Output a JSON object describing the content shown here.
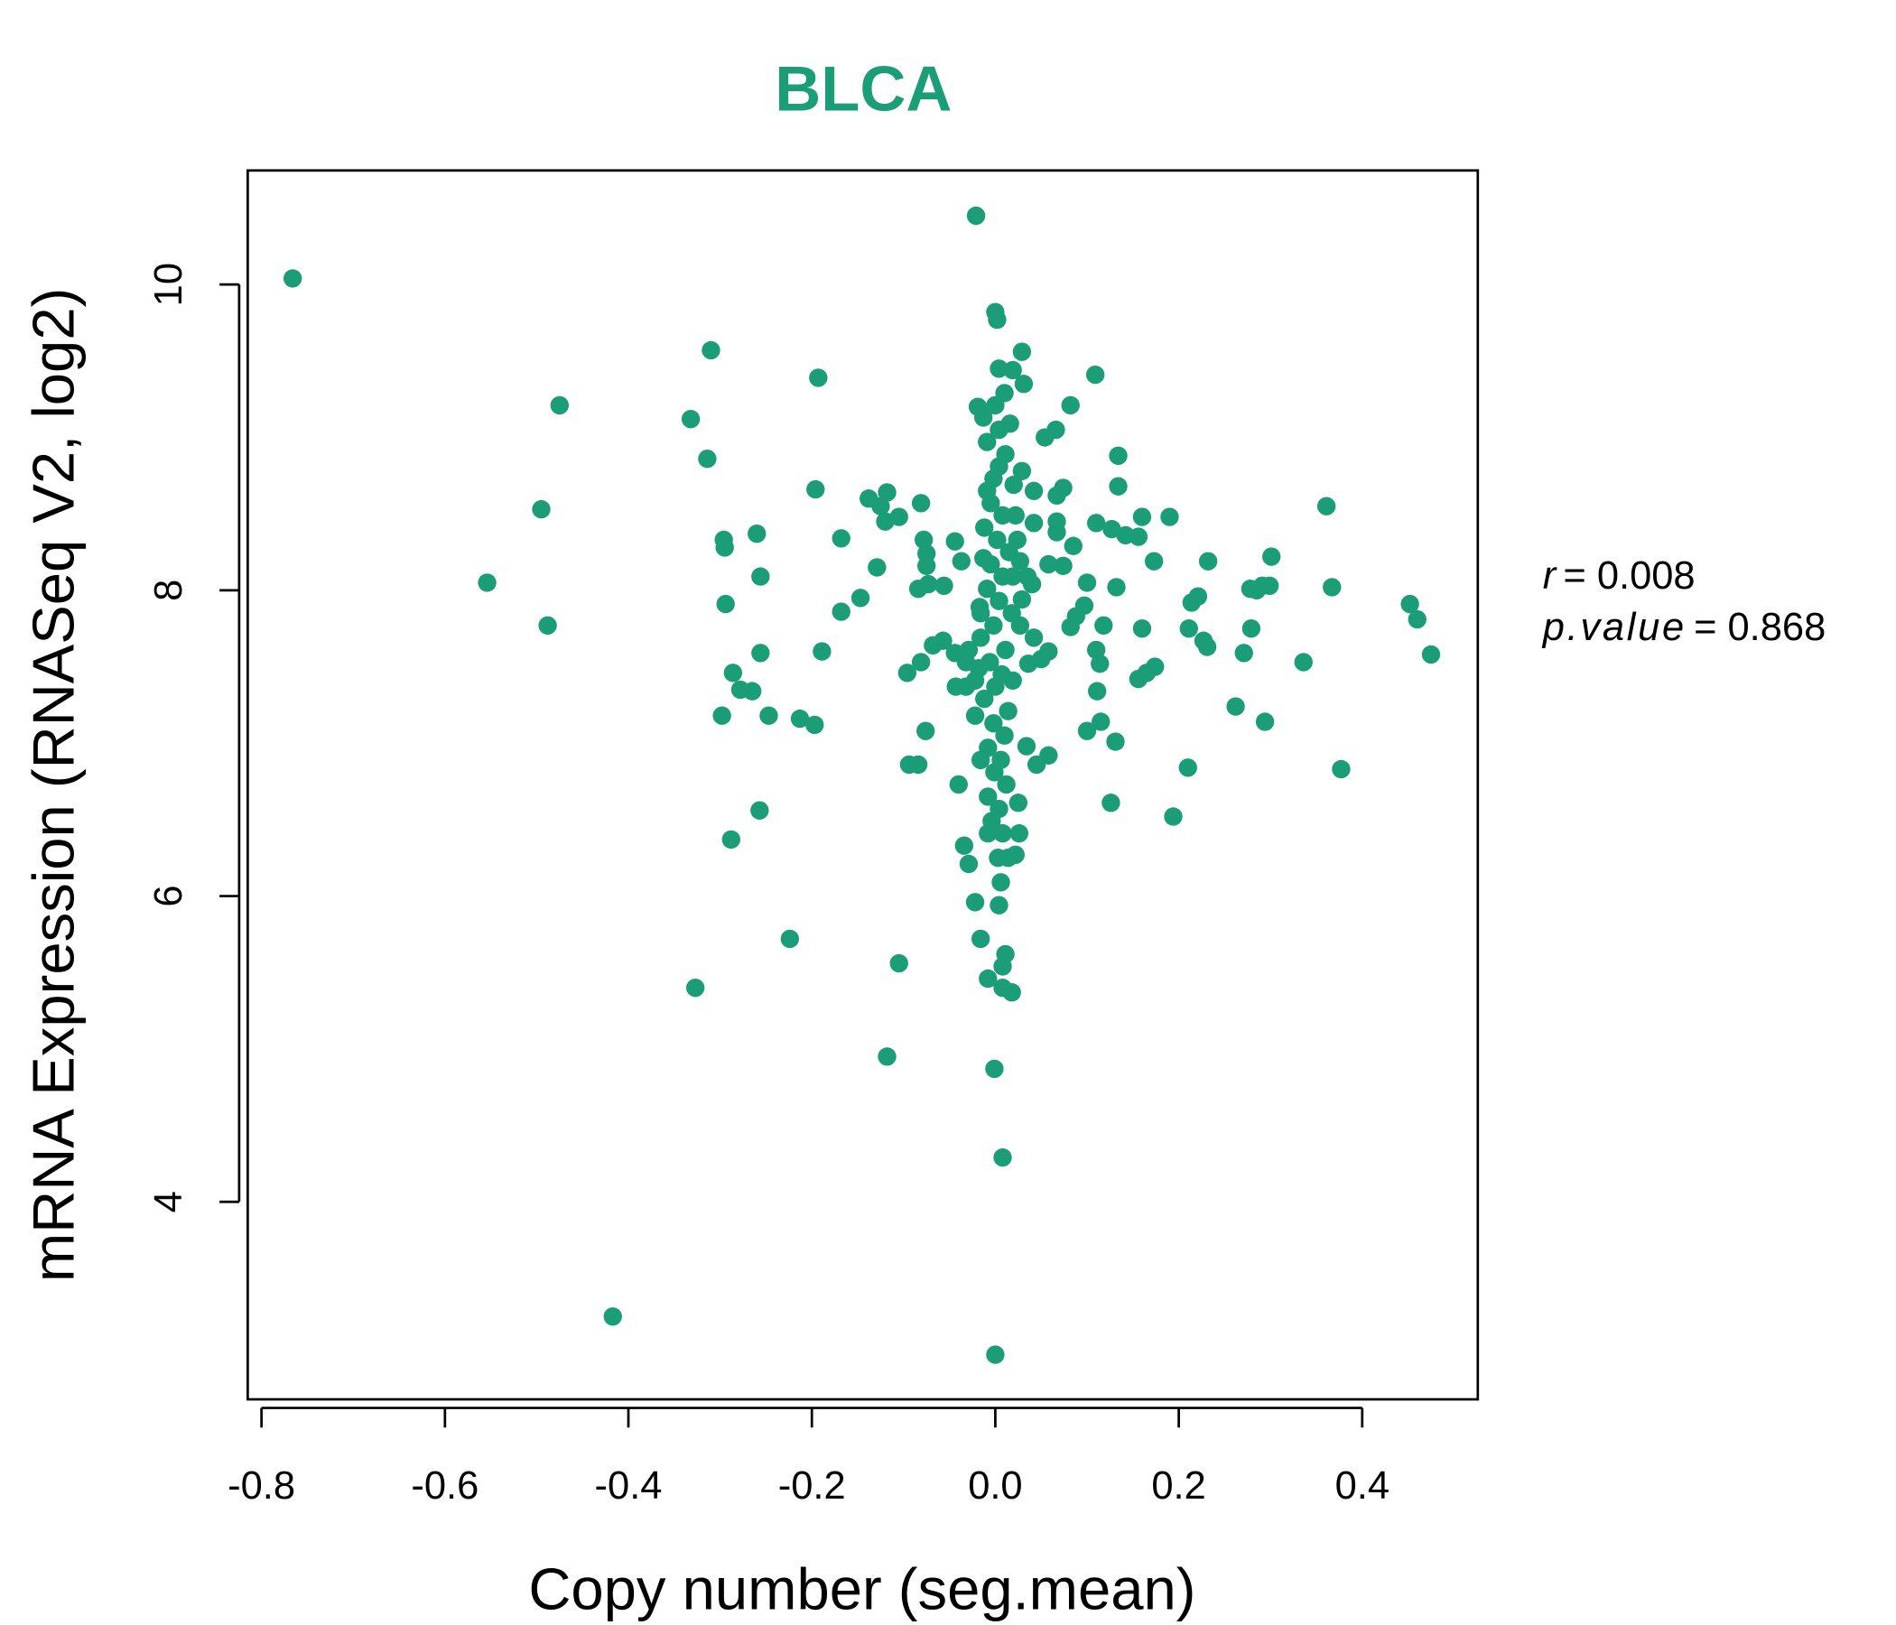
{
  "chart_data": {
    "type": "scatter",
    "title": "BLCA",
    "xlabel": "Copy number (seg.mean)",
    "ylabel": "mRNA Expression (RNASeq V2, log2)",
    "xlim": [
      -0.815,
      0.526
    ],
    "ylim": [
      2.708,
      10.746
    ],
    "xticks": [
      -0.8,
      -0.6,
      -0.4,
      -0.2,
      0.0,
      0.2,
      0.4
    ],
    "xtick_labels": [
      "-0.8",
      "-0.6",
      "-0.4",
      "-0.2",
      "0.0",
      "0.2",
      "0.4"
    ],
    "yticks": [
      4,
      6,
      8,
      10
    ],
    "ytick_labels": [
      "4",
      "6",
      "8",
      "10"
    ],
    "grid": false,
    "color": "#1b9e77",
    "stats": {
      "r_label": "r",
      "r_value": "= 0.008",
      "p_label": "p.value",
      "p_value": "= 0.868"
    },
    "points": [
      [
        -0.766,
        10.04
      ],
      [
        -0.021,
        10.45
      ],
      [
        -0.417,
        3.25
      ],
      [
        0.0,
        3.0
      ],
      [
        -0.554,
        8.05
      ],
      [
        -0.495,
        8.53
      ],
      [
        -0.488,
        7.77
      ],
      [
        -0.475,
        9.21
      ],
      [
        -0.332,
        9.12
      ],
      [
        -0.31,
        9.57
      ],
      [
        -0.314,
        8.86
      ],
      [
        -0.327,
        5.4
      ],
      [
        -0.296,
        8.33
      ],
      [
        -0.295,
        8.28
      ],
      [
        -0.294,
        7.91
      ],
      [
        -0.298,
        7.18
      ],
      [
        -0.286,
        7.46
      ],
      [
        -0.288,
        6.37
      ],
      [
        -0.278,
        7.35
      ],
      [
        -0.265,
        7.34
      ],
      [
        -0.26,
        8.37
      ],
      [
        -0.256,
        8.09
      ],
      [
        -0.256,
        7.59
      ],
      [
        -0.257,
        6.56
      ],
      [
        -0.247,
        7.18
      ],
      [
        -0.224,
        5.72
      ],
      [
        -0.213,
        7.16
      ],
      [
        -0.197,
        7.12
      ],
      [
        -0.193,
        9.39
      ],
      [
        -0.196,
        8.66
      ],
      [
        -0.189,
        7.6
      ],
      [
        -0.168,
        8.34
      ],
      [
        -0.168,
        7.86
      ],
      [
        -0.147,
        7.95
      ],
      [
        -0.138,
        8.6
      ],
      [
        -0.129,
        8.15
      ],
      [
        -0.125,
        8.55
      ],
      [
        -0.118,
        8.64
      ],
      [
        -0.12,
        8.45
      ],
      [
        -0.105,
        8.48
      ],
      [
        -0.118,
        4.95
      ],
      [
        -0.105,
        5.56
      ],
      [
        -0.096,
        7.46
      ],
      [
        -0.094,
        6.86
      ],
      [
        -0.081,
        8.57
      ],
      [
        -0.081,
        7.53
      ],
      [
        -0.084,
        6.86
      ],
      [
        -0.078,
        8.33
      ],
      [
        -0.084,
        8.01
      ],
      [
        -0.075,
        8.24
      ],
      [
        -0.075,
        8.16
      ],
      [
        -0.076,
        7.08
      ],
      [
        -0.073,
        8.04
      ],
      [
        -0.068,
        7.64
      ],
      [
        -0.057,
        7.67
      ],
      [
        -0.056,
        8.03
      ],
      [
        -0.044,
        8.32
      ],
      [
        -0.044,
        7.59
      ],
      [
        -0.043,
        7.37
      ],
      [
        -0.04,
        6.73
      ],
      [
        -0.037,
        8.19
      ],
      [
        -0.034,
        6.33
      ],
      [
        -0.032,
        7.37
      ],
      [
        -0.029,
        6.21
      ],
      [
        -0.022,
        5.96
      ],
      [
        -0.022,
        7.18
      ],
      [
        -0.016,
        5.72
      ],
      [
        0.0,
        9.82
      ],
      [
        0.002,
        9.77
      ],
      [
        0.029,
        9.56
      ],
      [
        0.004,
        9.45
      ],
      [
        0.019,
        9.44
      ],
      [
        0.031,
        9.35
      ],
      [
        0.01,
        9.29
      ],
      [
        -0.019,
        9.2
      ],
      [
        0.109,
        9.41
      ],
      [
        0.082,
        9.21
      ],
      [
        0.066,
        9.05
      ],
      [
        0.054,
        9.0
      ],
      [
        0.074,
        8.67
      ],
      [
        0.067,
        8.62
      ],
      [
        0.067,
        8.45
      ],
      [
        0.067,
        8.38
      ],
      [
        0.042,
        8.65
      ],
      [
        0.134,
        8.88
      ],
      [
        0.134,
        8.68
      ],
      [
        0.19,
        8.48
      ],
      [
        0.16,
        8.48
      ],
      [
        0.127,
        8.4
      ],
      [
        0.156,
        8.35
      ],
      [
        0.142,
        8.36
      ],
      [
        0.11,
        8.44
      ],
      [
        0.085,
        8.29
      ],
      [
        0.058,
        8.17
      ],
      [
        0.074,
        8.16
      ],
      [
        0.173,
        8.19
      ],
      [
        0.232,
        8.19
      ],
      [
        0.301,
        8.22
      ],
      [
        0.361,
        8.55
      ],
      [
        0.1,
        8.05
      ],
      [
        0.132,
        8.02
      ],
      [
        0.097,
        7.9
      ],
      [
        0.088,
        7.83
      ],
      [
        0.082,
        7.76
      ],
      [
        0.118,
        7.77
      ],
      [
        0.16,
        7.75
      ],
      [
        0.11,
        7.61
      ],
      [
        0.114,
        7.52
      ],
      [
        0.111,
        7.34
      ],
      [
        0.115,
        7.14
      ],
      [
        0.1,
        7.08
      ],
      [
        0.131,
        7.01
      ],
      [
        0.156,
        7.42
      ],
      [
        0.165,
        7.46
      ],
      [
        0.174,
        7.5
      ],
      [
        0.214,
        7.92
      ],
      [
        0.221,
        7.96
      ],
      [
        0.211,
        7.75
      ],
      [
        0.227,
        7.67
      ],
      [
        0.231,
        7.63
      ],
      [
        0.278,
        8.01
      ],
      [
        0.285,
        8.0
      ],
      [
        0.291,
        8.03
      ],
      [
        0.299,
        8.03
      ],
      [
        0.279,
        7.75
      ],
      [
        0.271,
        7.59
      ],
      [
        0.262,
        7.24
      ],
      [
        0.294,
        7.14
      ],
      [
        0.336,
        7.53
      ],
      [
        0.367,
        8.02
      ],
      [
        0.377,
        6.83
      ],
      [
        0.452,
        7.91
      ],
      [
        0.46,
        7.81
      ],
      [
        0.475,
        7.58
      ],
      [
        0.194,
        6.52
      ],
      [
        0.21,
        6.84
      ],
      [
        0.126,
        6.61
      ],
      [
        0.058,
        6.92
      ],
      [
        0.045,
        6.86
      ],
      [
        0.034,
        6.98
      ],
      [
        0.025,
        6.61
      ],
      [
        0.026,
        6.41
      ],
      [
        0.022,
        6.27
      ],
      [
        0.014,
        6.25
      ],
      [
        0.006,
        6.09
      ],
      [
        0.004,
        5.94
      ],
      [
        0.011,
        5.62
      ],
      [
        0.008,
        5.54
      ],
      [
        -0.008,
        5.46
      ],
      [
        0.018,
        5.37
      ],
      [
        0.008,
        5.4
      ],
      [
        -0.001,
        4.87
      ],
      [
        0.008,
        4.29
      ],
      [
        0.042,
        7.69
      ],
      [
        0.058,
        7.6
      ],
      [
        0.036,
        7.52
      ],
      [
        0.05,
        7.55
      ],
      [
        0.04,
        8.04
      ],
      [
        0.029,
        7.94
      ],
      [
        0.035,
        8.09
      ],
      [
        0.027,
        8.19
      ],
      [
        0.029,
        8.78
      ],
      [
        0.042,
        8.44
      ],
      [
        -0.009,
        8.65
      ],
      [
        -0.002,
        8.73
      ],
      [
        0.004,
        8.81
      ],
      [
        0.011,
        8.89
      ],
      [
        -0.005,
        8.57
      ],
      [
        0.008,
        8.49
      ],
      [
        -0.012,
        8.41
      ],
      [
        0.002,
        8.33
      ],
      [
        0.015,
        8.25
      ],
      [
        -0.005,
        8.17
      ],
      [
        0.008,
        8.09
      ],
      [
        -0.009,
        8.01
      ],
      [
        0.004,
        7.93
      ],
      [
        0.018,
        7.85
      ],
      [
        -0.002,
        7.77
      ],
      [
        -0.016,
        7.69
      ],
      [
        0.011,
        7.61
      ],
      [
        -0.006,
        7.53
      ],
      [
        0.007,
        7.45
      ],
      [
        0.0,
        7.37
      ],
      [
        -0.012,
        7.29
      ],
      [
        0.014,
        7.21
      ],
      [
        -0.002,
        7.13
      ],
      [
        0.01,
        7.05
      ],
      [
        -0.008,
        6.97
      ],
      [
        0.006,
        6.89
      ],
      [
        -0.001,
        6.81
      ],
      [
        0.012,
        6.73
      ],
      [
        -0.008,
        6.65
      ],
      [
        0.004,
        6.57
      ],
      [
        -0.004,
        6.49
      ],
      [
        0.008,
        6.41
      ],
      [
        -0.009,
        8.97
      ],
      [
        0.004,
        9.05
      ],
      [
        0.016,
        9.09
      ],
      [
        -0.013,
        9.13
      ],
      [
        0.0,
        9.21
      ],
      [
        -0.016,
        6.89
      ],
      [
        -0.013,
        8.21
      ],
      [
        0.022,
        8.49
      ],
      [
        0.019,
        8.09
      ],
      [
        -0.016,
        7.85
      ],
      [
        -0.018,
        7.49
      ],
      [
        0.019,
        7.41
      ],
      [
        -0.008,
        6.41
      ],
      [
        0.003,
        6.25
      ],
      [
        -0.022,
        7.41
      ],
      [
        -0.017,
        7.89
      ],
      [
        -0.029,
        7.61
      ],
      [
        -0.032,
        7.53
      ],
      [
        0.02,
        8.69
      ],
      [
        0.024,
        8.33
      ],
      [
        0.027,
        7.77
      ]
    ]
  }
}
